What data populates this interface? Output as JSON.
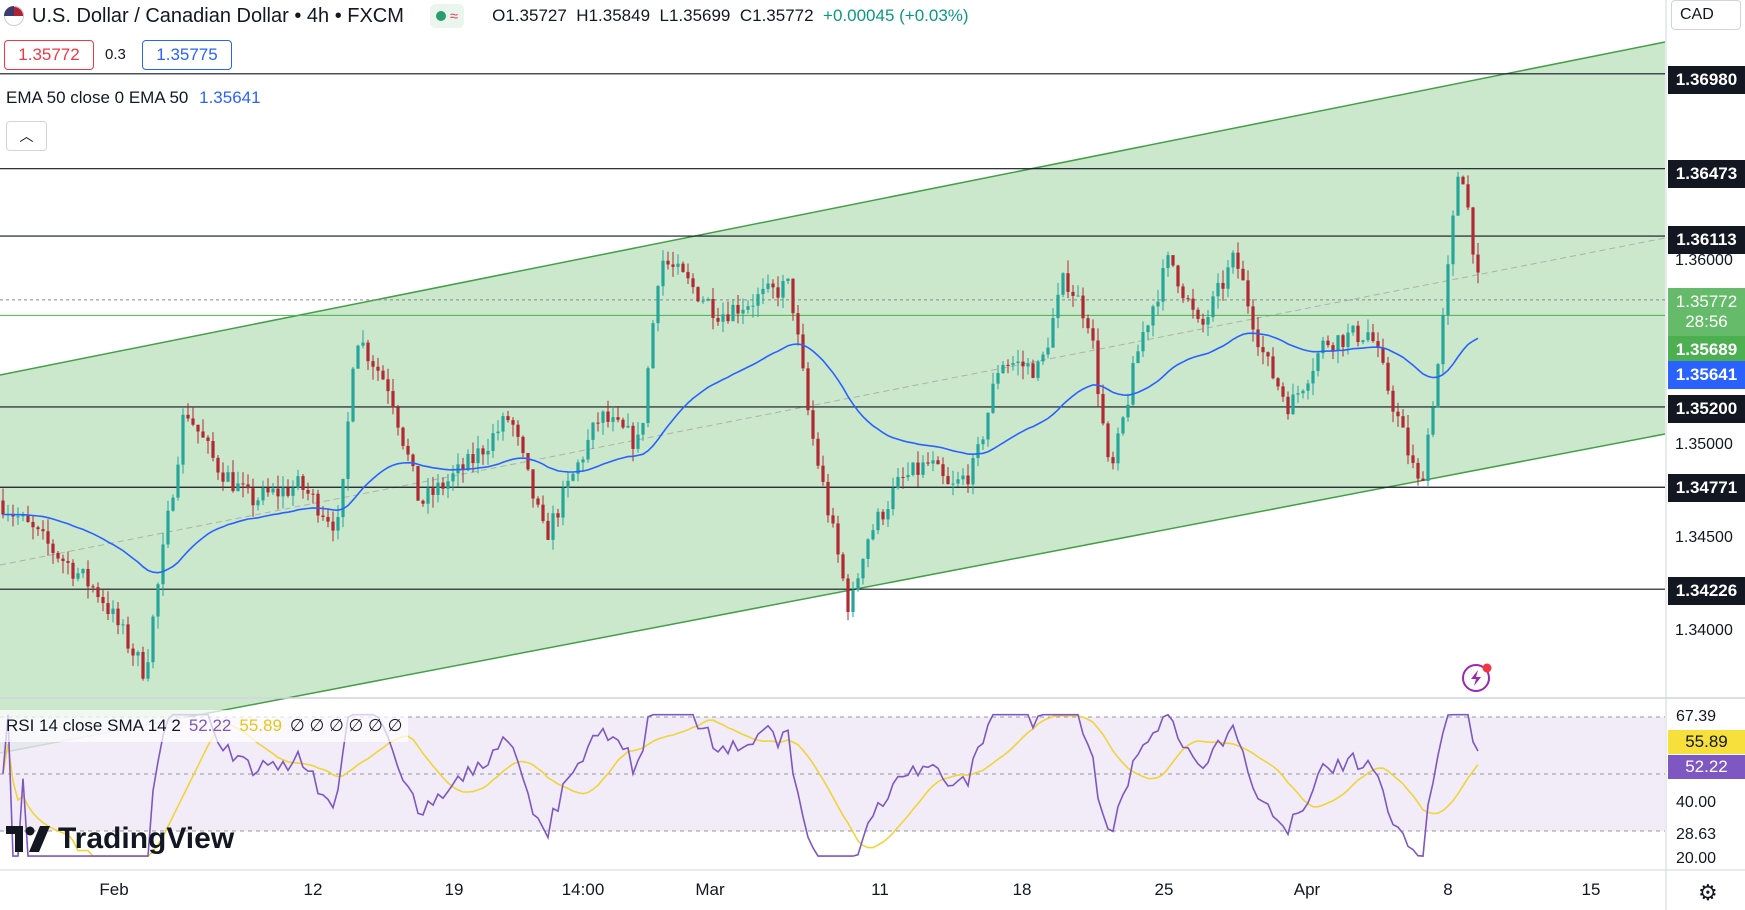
{
  "header": {
    "title": "U.S. Dollar / Canadian Dollar • 4h • FXCM",
    "open": "O1.35727",
    "high": "H1.35849",
    "low": "L1.35699",
    "close": "C1.35772",
    "change": "+0.00045 (+0.03%)"
  },
  "trade": {
    "sell_price": "1.35772",
    "spread": "0.3",
    "buy_price": "1.35775"
  },
  "indicators": {
    "ema_label": "EMA 50 close 0 EMA 50",
    "ema_value": "1.35641",
    "rsi_label": "RSI 14 close SMA 14 2",
    "rsi_value": "52.22",
    "rsi_sma_value": "55.89",
    "rsi_placeholders": "∅ ∅ ∅ ∅ ∅ ∅"
  },
  "currency": "CAD",
  "price_axis": {
    "labels": [
      "1.36000",
      "1.35000",
      "1.34500",
      "1.34000"
    ],
    "level_tags": [
      "1.36980",
      "1.36473",
      "1.36113",
      "1.35200",
      "1.34771",
      "1.34226"
    ],
    "last_price": "1.35772",
    "countdown": "28:56",
    "green_tag": "1.35689",
    "ema_tag": "1.35641"
  },
  "rsi_axis": {
    "labels": [
      "67.39",
      "40.00",
      "28.63",
      "20.00"
    ],
    "sma_tag": "55.89",
    "rsi_tag": "52.22"
  },
  "time_axis": [
    "Feb",
    "12",
    "19",
    "14:00",
    "Mar",
    "11",
    "18",
    "25",
    "Apr",
    "8",
    "15"
  ],
  "branding": "TradingView",
  "colors": {
    "up": "#26a69a",
    "down": "#b22833",
    "channel_fill": "#c8e6c9",
    "channel_line": "#43a047",
    "ema": "#2962ff",
    "rsi": "#7e57c2",
    "rsi_sma": "#f0d43a"
  },
  "chart_data": {
    "type": "candlestick",
    "price_range": [
      1.3365,
      1.3715
    ],
    "support_resistance": [
      1.3698,
      1.36473,
      1.36113,
      1.352,
      1.34771,
      1.34226
    ],
    "ema50_last": 1.35641,
    "last_close": 1.35772,
    "rsi_range": [
      20,
      75
    ],
    "rsi_levels": [
      67.39,
      40.0,
      28.63
    ],
    "rsi_last": 52.22,
    "rsi_sma_last": 55.89
  }
}
